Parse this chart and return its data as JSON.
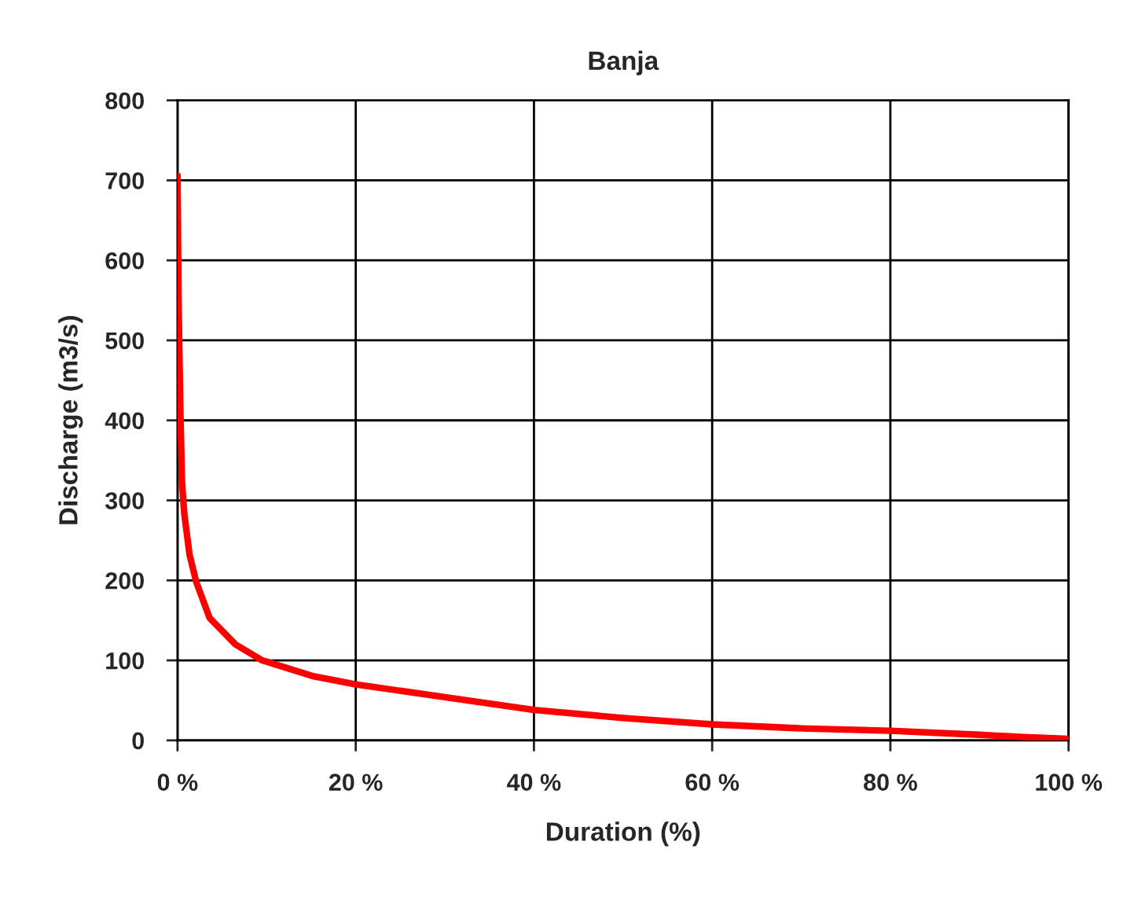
{
  "chart_data": {
    "type": "line",
    "title": "Banja",
    "xlabel": "Duration (%)",
    "ylabel": "Discharge (m3/s)",
    "x": [
      0,
      0.1,
      0.3,
      0.5,
      0.76,
      1.35,
      2.1,
      3.6,
      6.5,
      9.5,
      15.3,
      20,
      30,
      40,
      50,
      60,
      70,
      80,
      90,
      95,
      100
    ],
    "series": [
      {
        "color": "#ff0000",
        "values": [
          706,
          560,
          421,
          323,
          283,
          232,
          198,
          153,
          120,
          100,
          80,
          70,
          54,
          38,
          28,
          20,
          15,
          12,
          7,
          4,
          2
        ]
      }
    ],
    "xlim": [
      0,
      100
    ],
    "ylim": [
      0,
      800
    ],
    "xticks": [
      {
        "value": 0,
        "label": "0 %"
      },
      {
        "value": 20,
        "label": "20 %"
      },
      {
        "value": 40,
        "label": "40 %"
      },
      {
        "value": 60,
        "label": "60 %"
      },
      {
        "value": 80,
        "label": "80 %"
      },
      {
        "value": 100,
        "label": "100 %"
      }
    ],
    "yticks": [
      0,
      100,
      200,
      300,
      400,
      500,
      600,
      700,
      800
    ],
    "grid": true,
    "marker": "none",
    "line_style": "solid"
  }
}
